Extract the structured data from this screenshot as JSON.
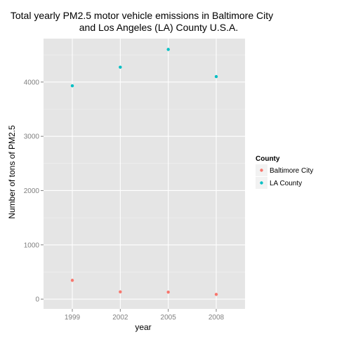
{
  "chart_data": {
    "type": "scatter",
    "title_line1": "Total yearly PM2.5 motor vehicle emissions in Baltimore City",
    "title_line2": "and Los Angeles (LA) County U.S.A.",
    "xlabel": "year",
    "ylabel": "Number of tons of PM2.5",
    "categories": [
      "1999",
      "2002",
      "2005",
      "2008"
    ],
    "ylim": [
      -180,
      4800
    ],
    "yticks": [
      0,
      1000,
      2000,
      3000,
      4000
    ],
    "yticks_minor": [
      500,
      1500,
      2500,
      3500,
      4500
    ],
    "grid": true,
    "legend": {
      "title": "County",
      "position": "right"
    },
    "series": [
      {
        "name": "Baltimore City",
        "color": "#f8766d",
        "values": [
          347,
          134,
          130,
          88
        ]
      },
      {
        "name": "LA County",
        "color": "#00bfc4",
        "values": [
          3931,
          4274,
          4601,
          4101
        ]
      }
    ]
  }
}
